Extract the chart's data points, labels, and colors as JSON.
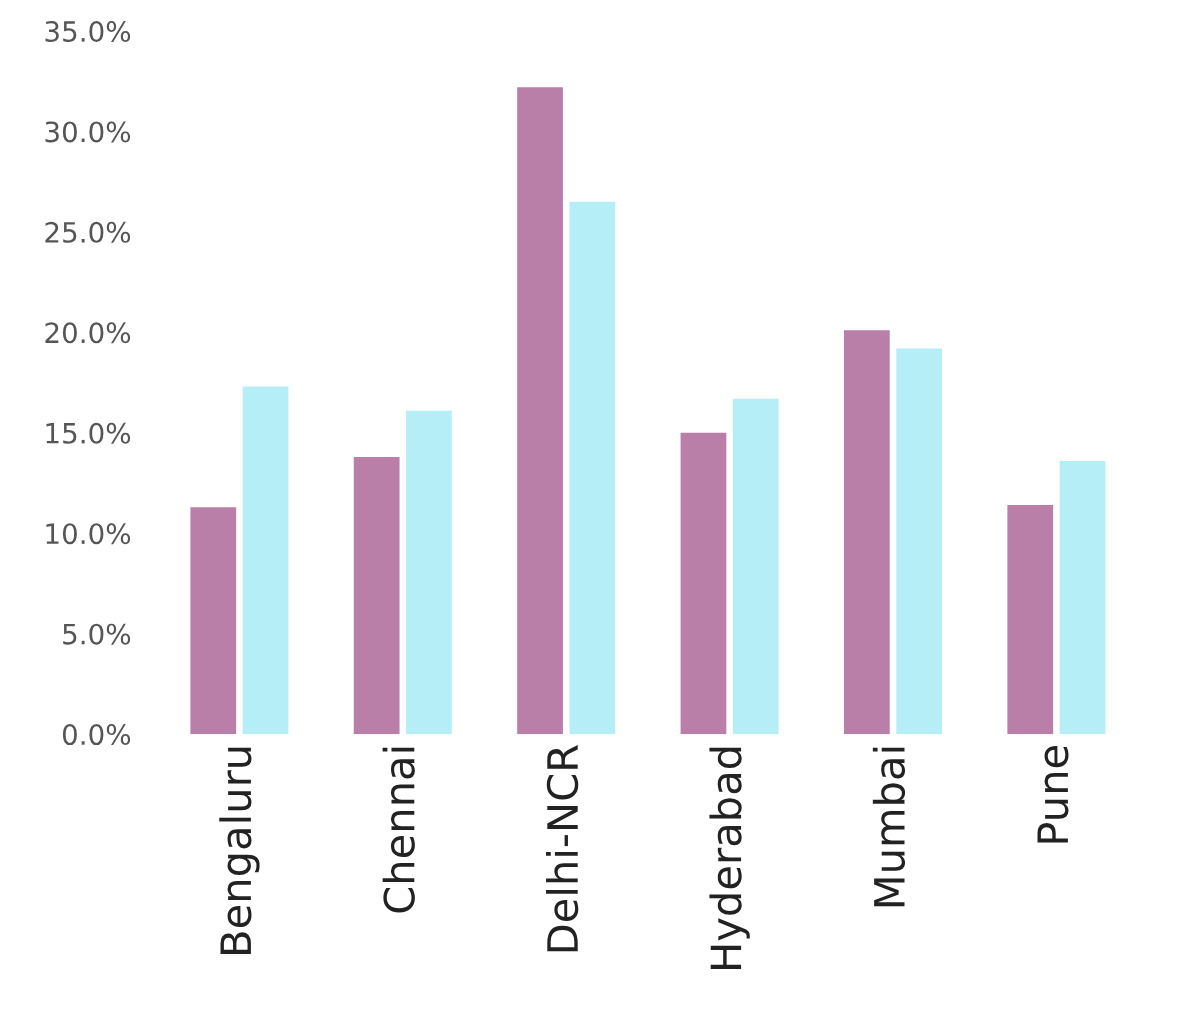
{
  "chart_data": {
    "type": "bar",
    "categories": [
      "Bengaluru",
      "Chennai",
      "Delhi-NCR",
      "Hyderabad",
      "Mumbai",
      "Pune"
    ],
    "series": [
      {
        "color": "#b97fa9",
        "values": [
          11.3,
          13.8,
          32.2,
          15.0,
          20.1,
          11.4
        ]
      },
      {
        "color": "#b6eef7",
        "values": [
          17.3,
          16.1,
          26.5,
          16.7,
          19.2,
          13.6
        ]
      }
    ],
    "ylim": [
      0,
      35
    ],
    "yticks": [
      {
        "value": 0,
        "label": "0.0%"
      },
      {
        "value": 5,
        "label": "5.0%"
      },
      {
        "value": 10,
        "label": "10.0%"
      },
      {
        "value": 15,
        "label": "15.0%"
      },
      {
        "value": 20,
        "label": "20.0%"
      },
      {
        "value": 25,
        "label": "25.0%"
      },
      {
        "value": 30,
        "label": "30.0%"
      },
      {
        "value": 35,
        "label": "35.0%"
      }
    ],
    "grid": false
  }
}
